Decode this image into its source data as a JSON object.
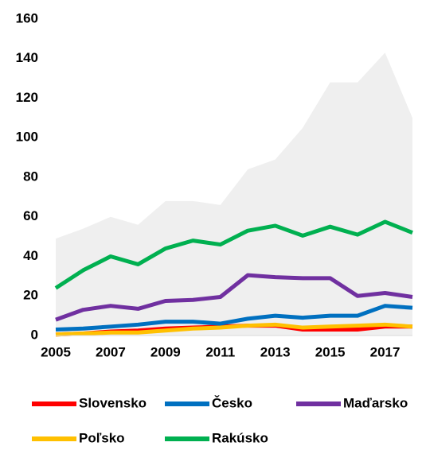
{
  "chart_data": {
    "type": "line",
    "x": [
      2005,
      2006,
      2007,
      2008,
      2009,
      2010,
      2011,
      2012,
      2013,
      2014,
      2015,
      2016,
      2017,
      2018
    ],
    "xlim": [
      2005,
      2018
    ],
    "xticks": [
      2005,
      2007,
      2009,
      2011,
      2013,
      2015,
      2017
    ],
    "ylim": [
      0,
      160
    ],
    "yticks": [
      0,
      20,
      40,
      60,
      80,
      100,
      120,
      140,
      160
    ],
    "grid": false,
    "series": [
      {
        "style": "area",
        "color": "#efefef",
        "values": [
          49,
          54,
          60,
          56,
          68,
          68,
          66,
          84,
          89,
          105,
          128,
          128,
          143,
          110
        ]
      },
      {
        "name": "Slovensko",
        "color": "#ff0000",
        "values": [
          0.5,
          1,
          2,
          2.5,
          3.5,
          4,
          4.5,
          5,
          5,
          3,
          3,
          3,
          4.5,
          4.5
        ]
      },
      {
        "name": "Česko",
        "color": "#0070c0",
        "values": [
          3,
          3.5,
          4.5,
          5.5,
          7,
          7,
          6,
          8.5,
          10,
          9,
          10,
          10,
          15,
          14
        ]
      },
      {
        "name": "Maďarsko",
        "color": "#7030a0",
        "values": [
          8,
          13,
          15,
          13.5,
          17.5,
          18,
          19.5,
          30.5,
          29.5,
          29,
          29,
          20,
          21.5,
          19.5
        ]
      },
      {
        "name": "Poľsko",
        "color": "#ffc000",
        "values": [
          0.5,
          1,
          1.5,
          1.5,
          2.5,
          3.5,
          4,
          5,
          5.5,
          4,
          4.5,
          5,
          5.5,
          4.5
        ]
      },
      {
        "name": "Rakúsko",
        "color": "#00b050",
        "values": [
          24,
          33,
          40,
          36,
          44,
          48,
          46,
          53,
          55.5,
          50.5,
          55,
          51,
          57.5,
          52
        ]
      }
    ]
  }
}
